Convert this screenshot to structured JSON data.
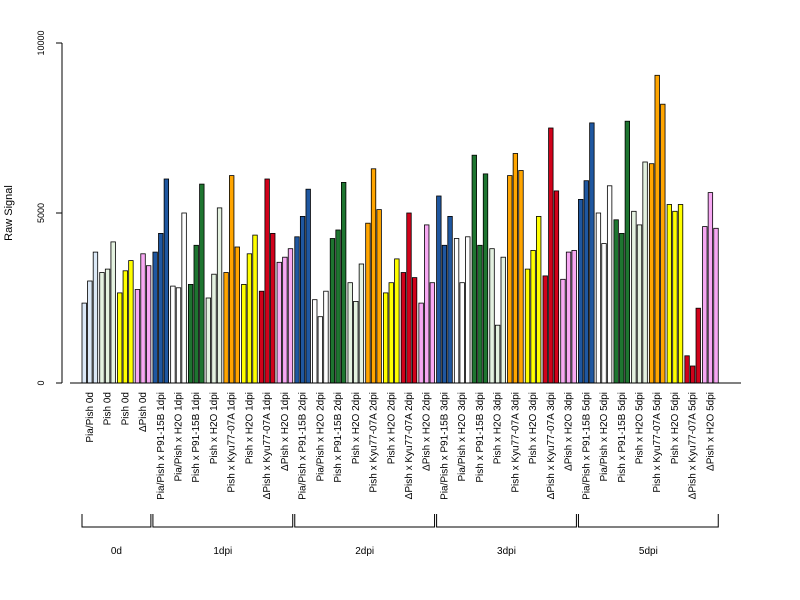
{
  "chart_data": {
    "type": "bar",
    "ylabel": "Raw Signal",
    "ylim": [
      0,
      10000
    ],
    "yticks": [
      0,
      5000,
      10000
    ],
    "colors": {
      "lightblue": "#dce9f7",
      "darkblue": "#1f57a0",
      "white": "#ffffff",
      "darkgreen": "#1e7530",
      "lightgreen": "#e4f2e0",
      "orange": "#ffa500",
      "yellow": "#ffff00",
      "red": "#d0021b",
      "pink": "#f7a8f3"
    },
    "categories": [
      {
        "label": "Pia/Pish 0d",
        "color": "lightblue",
        "values": [
          2350,
          3000,
          3850
        ]
      },
      {
        "label": "Pish 0d",
        "color": "lightgreen",
        "values": [
          3250,
          3350,
          4150
        ]
      },
      {
        "label": "Pish 0d",
        "color": "yellow",
        "values": [
          2650,
          3300,
          3600
        ]
      },
      {
        "label": "ΔPish 0d",
        "color": "pink",
        "values": [
          2750,
          3800,
          3450
        ]
      },
      {
        "label": "Pia/Pish x P91-15B 1dpi",
        "color": "darkblue",
        "values": [
          3850,
          4400,
          6000
        ]
      },
      {
        "label": "Pia/Pish x H2O 1dpi",
        "color": "white",
        "values": [
          2850,
          2800,
          5000
        ]
      },
      {
        "label": "Pish x P91-15B 1dpi",
        "color": "darkgreen",
        "values": [
          2900,
          4050,
          5850
        ]
      },
      {
        "label": "Pish x H2O 1dpi",
        "color": "lightgreen",
        "values": [
          2500,
          3200,
          5150
        ]
      },
      {
        "label": "Pish x Kyu77-07A 1dpi",
        "color": "orange",
        "values": [
          3250,
          6100,
          4000
        ]
      },
      {
        "label": "Pish x H2O 1dpi",
        "color": "yellow",
        "values": [
          2900,
          3800,
          4350
        ]
      },
      {
        "label": "ΔPish x Kyu77-07A 1dpi",
        "color": "red",
        "values": [
          2700,
          6000,
          4400
        ]
      },
      {
        "label": "ΔPish x H2O 1dpi",
        "color": "pink",
        "values": [
          3550,
          3700,
          3950
        ]
      },
      {
        "label": "Pia/Pish x P91-15B 2dpi",
        "color": "darkblue",
        "values": [
          4300,
          4900,
          5700
        ]
      },
      {
        "label": "Pia/Pish x H2O 2dpi",
        "color": "white",
        "values": [
          2450,
          1950,
          2700
        ]
      },
      {
        "label": "Pish x P91-15B 2dpi",
        "color": "darkgreen",
        "values": [
          4250,
          4500,
          5900
        ]
      },
      {
        "label": "Pish x H2O 2dpi",
        "color": "lightgreen",
        "values": [
          2950,
          2400,
          3500
        ]
      },
      {
        "label": "Pish x Kyu77-07A 2dpi",
        "color": "orange",
        "values": [
          4700,
          6300,
          5100
        ]
      },
      {
        "label": "Pish x H2O 2dpi",
        "color": "yellow",
        "values": [
          2650,
          2950,
          3650
        ]
      },
      {
        "label": "ΔPish x Kyu77-07A 2dpi",
        "color": "red",
        "values": [
          3250,
          5000,
          3100
        ]
      },
      {
        "label": "ΔPish x H2O 2dpi",
        "color": "pink",
        "values": [
          2350,
          4650,
          2950
        ]
      },
      {
        "label": "Pia/Pish x P91-15B 3dpi",
        "color": "darkblue",
        "values": [
          5500,
          4050,
          4900
        ]
      },
      {
        "label": "Pia/Pish x H2O 3dpi",
        "color": "white",
        "values": [
          4250,
          2950,
          4300
        ]
      },
      {
        "label": "Pish x P91-15B 3dpi",
        "color": "darkgreen",
        "values": [
          6700,
          4050,
          6150
        ]
      },
      {
        "label": "Pish x H2O 3dpi",
        "color": "lightgreen",
        "values": [
          3950,
          1700,
          3700
        ]
      },
      {
        "label": "Pish x Kyu77-07A 3dpi",
        "color": "orange",
        "values": [
          6100,
          6750,
          6250
        ]
      },
      {
        "label": "Pish x H2O 3dpi",
        "color": "yellow",
        "values": [
          3350,
          3900,
          4900
        ]
      },
      {
        "label": "ΔPish x Kyu77-07A 3dpi",
        "color": "red",
        "values": [
          3150,
          7500,
          5650
        ]
      },
      {
        "label": "ΔPish x H2O 3dpi",
        "color": "pink",
        "values": [
          3050,
          3850,
          3900
        ]
      },
      {
        "label": "Pia/Pish x P91-15B 5dpi",
        "color": "darkblue",
        "values": [
          5400,
          5950,
          7650
        ]
      },
      {
        "label": "Pia/Pish x H2O 5dpi",
        "color": "white",
        "values": [
          5000,
          4100,
          5800
        ]
      },
      {
        "label": "Pish x P91-15B 5dpi",
        "color": "darkgreen",
        "values": [
          4800,
          4400,
          7700
        ]
      },
      {
        "label": "Pish x H2O 5dpi",
        "color": "lightgreen",
        "values": [
          5050,
          4650,
          6500
        ]
      },
      {
        "label": "Pish x Kyu77-07A 5dpi",
        "color": "orange",
        "values": [
          6450,
          9050,
          8200
        ]
      },
      {
        "label": "Pish x H2O 5dpi",
        "color": "yellow",
        "values": [
          5250,
          5050,
          5250
        ]
      },
      {
        "label": "ΔPish x Kyu77-07A 5dpi",
        "color": "red",
        "values": [
          800,
          500,
          2200
        ]
      },
      {
        "label": "ΔPish x H2O 5dpi",
        "color": "pink",
        "values": [
          4600,
          5600,
          4550
        ]
      }
    ],
    "groups": [
      {
        "label": "0d",
        "first": 0,
        "last": 3
      },
      {
        "label": "1dpi",
        "first": 4,
        "last": 11
      },
      {
        "label": "2dpi",
        "first": 12,
        "last": 19
      },
      {
        "label": "3dpi",
        "first": 20,
        "last": 27
      },
      {
        "label": "5dpi",
        "first": 28,
        "last": 35
      }
    ],
    "grid": false,
    "legend": "none"
  }
}
